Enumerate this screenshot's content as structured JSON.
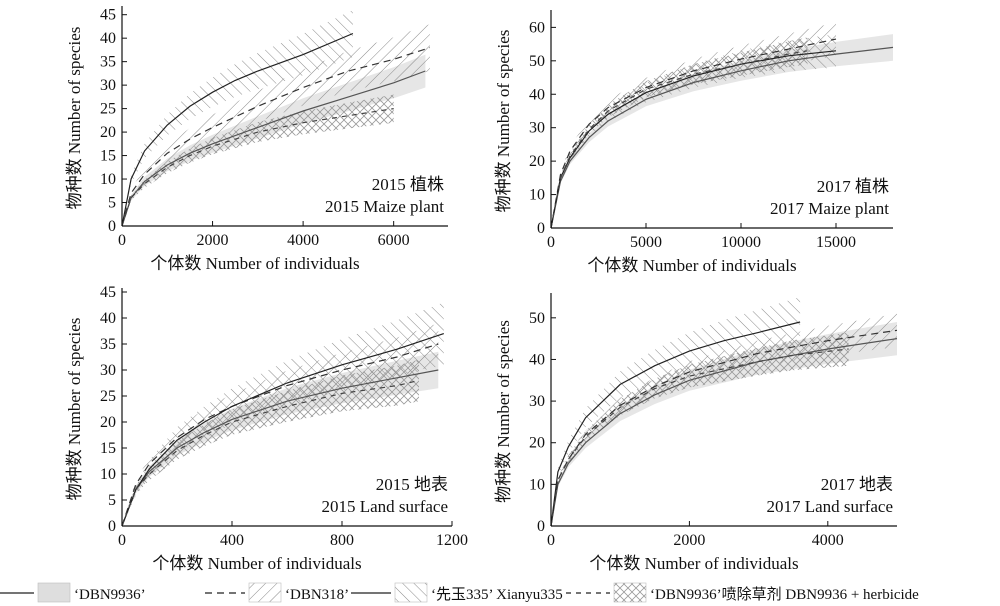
{
  "legend": {
    "items": [
      {
        "label": "‘DBN9936’",
        "line": "solid",
        "band": "gray"
      },
      {
        "label": "‘DBN318’",
        "line": "dashed",
        "band": "hatch-right"
      },
      {
        "label": "‘先玉335’ Xianyu335",
        "line": "solid",
        "band": "hatch-left"
      },
      {
        "label": "‘DBN9936’喷除草剂 DBN9936 + herbicide",
        "line": "dashed",
        "band": "hatch-cross"
      }
    ]
  },
  "colors": {
    "band_gray": "#d9d9d9",
    "hatch": "#7a7a7a",
    "line": "#333333",
    "axis": "#111111"
  },
  "chart_data": [
    {
      "type": "line",
      "panel_label": [
        "2015 植株",
        "2015 Maize plant"
      ],
      "xlabel": "个体数 Number of individuals",
      "ylabel": "物种数 Number of species",
      "xlim": [
        0,
        7200
      ],
      "ylim": [
        0,
        46
      ],
      "xticks": [
        0,
        2000,
        4000,
        6000
      ],
      "yticks": [
        0,
        5,
        10,
        15,
        20,
        25,
        30,
        35,
        40,
        45
      ],
      "series": [
        {
          "name": "‘DBN9936’",
          "x": [
            0,
            200,
            500,
            1000,
            1500,
            2000,
            3000,
            4000,
            5000,
            6000,
            6700
          ],
          "y": [
            0,
            6,
            9.5,
            13,
            15.5,
            17.5,
            21,
            24.5,
            27.5,
            30.5,
            33
          ],
          "band": 3.5
        },
        {
          "name": "‘DBN318’",
          "x": [
            0,
            200,
            500,
            1000,
            1500,
            2000,
            3000,
            4000,
            5000,
            6000,
            6800
          ],
          "y": [
            0,
            7,
            11,
            15.5,
            18.5,
            21,
            25.5,
            29.5,
            33,
            35.5,
            38
          ],
          "band": 5
        },
        {
          "name": "‘先玉335’ Xianyu335",
          "x": [
            0,
            200,
            500,
            1000,
            1500,
            2000,
            2500,
            3000,
            4000,
            5100
          ],
          "y": [
            0,
            10,
            16,
            21.5,
            25.5,
            28.5,
            31,
            33,
            36.5,
            41
          ],
          "band": 5
        },
        {
          "name": "‘DBN9936’喷除草剂 DBN9936 + herbicide",
          "x": [
            0,
            200,
            500,
            1000,
            1500,
            2000,
            3000,
            4000,
            5000,
            6000
          ],
          "y": [
            0,
            6,
            9,
            12.5,
            15,
            17,
            20,
            22,
            23.5,
            25
          ],
          "band": 3
        }
      ]
    },
    {
      "type": "line",
      "panel_label": [
        "2017 植株",
        "2017 Maize plant"
      ],
      "xlabel": "个体数 Number of individuals",
      "ylabel": "物种数 Number of species",
      "xlim": [
        0,
        18000
      ],
      "ylim": [
        0,
        64
      ],
      "xticks": [
        0,
        5000,
        10000,
        15000
      ],
      "yticks": [
        0,
        10,
        20,
        30,
        40,
        50,
        60
      ],
      "series": [
        {
          "name": "‘DBN9936’",
          "x": [
            0,
            500,
            1000,
            2000,
            3000,
            5000,
            7500,
            10000,
            12500,
            15000,
            18000
          ],
          "y": [
            0,
            14,
            20,
            27,
            32,
            38.5,
            43.5,
            47,
            50,
            52,
            54
          ],
          "band": 4
        },
        {
          "name": "‘DBN318’",
          "x": [
            0,
            500,
            1000,
            2000,
            3000,
            5000,
            7500,
            10000,
            12500,
            15000
          ],
          "y": [
            0,
            16,
            23,
            31,
            36,
            42,
            47,
            50.5,
            53.5,
            56.5
          ],
          "band": 5
        },
        {
          "name": "‘先玉335’ Xianyu335",
          "x": [
            0,
            500,
            1000,
            2000,
            3000,
            5000,
            7500,
            10000,
            12500,
            15000
          ],
          "y": [
            0,
            15,
            21,
            29,
            34,
            40.5,
            45.5,
            49,
            51.5,
            53
          ],
          "band": 5
        },
        {
          "name": "‘DBN9936’喷除草剂 DBN9936 + herbicide",
          "x": [
            0,
            500,
            1000,
            2000,
            3000,
            5000,
            7500,
            10000,
            12500,
            13500
          ],
          "y": [
            0,
            15,
            21.5,
            29.5,
            35,
            41.5,
            46,
            49,
            52,
            53
          ],
          "band": 4
        }
      ]
    },
    {
      "type": "line",
      "panel_label": [
        "2015 地表",
        "2015 Land surface"
      ],
      "xlabel": "个体数 Number of individuals",
      "ylabel": "物种数 Number of species",
      "xlim": [
        0,
        1200
      ],
      "ylim": [
        0,
        45
      ],
      "xticks": [
        0,
        400,
        800,
        1200
      ],
      "yticks": [
        0,
        5,
        10,
        15,
        20,
        25,
        30,
        35,
        40,
        45
      ],
      "series": [
        {
          "name": "‘DBN9936’",
          "x": [
            0,
            50,
            100,
            200,
            300,
            400,
            600,
            800,
            1000,
            1150
          ],
          "y": [
            0,
            7,
            10.5,
            15,
            18,
            20.5,
            24,
            26.5,
            28.5,
            30
          ],
          "band": 3.5
        },
        {
          "name": "‘DBN318’",
          "x": [
            0,
            50,
            100,
            200,
            300,
            400,
            600,
            800,
            1000,
            1150
          ],
          "y": [
            0,
            8,
            12,
            17,
            20.5,
            23,
            27,
            30,
            32.5,
            35
          ],
          "band": 4
        },
        {
          "name": "‘先玉335’ Xianyu335",
          "x": [
            0,
            50,
            100,
            200,
            300,
            400,
            600,
            800,
            1000,
            1170
          ],
          "y": [
            0,
            7,
            11,
            16.5,
            20,
            23,
            27.5,
            31,
            34,
            37
          ],
          "band": 6
        },
        {
          "name": "‘DBN9936’喷除草剂 DBN9936 + herbicide",
          "x": [
            0,
            50,
            100,
            200,
            300,
            400,
            600,
            800,
            1000,
            1080
          ],
          "y": [
            0,
            7,
            10,
            14.5,
            17.5,
            20,
            23,
            25.5,
            27,
            28
          ],
          "band": 4
        }
      ]
    },
    {
      "type": "line",
      "panel_label": [
        "2017 地表",
        "2017 Land surface"
      ],
      "xlabel": "个体数 Number of individuals",
      "ylabel": "物种数 Number of species",
      "xlim": [
        0,
        5000
      ],
      "ylim": [
        0,
        55
      ],
      "xticks": [
        0,
        2000,
        4000
      ],
      "yticks": [
        0,
        10,
        20,
        30,
        40,
        50
      ],
      "series": [
        {
          "name": "‘DBN9936’",
          "x": [
            0,
            100,
            250,
            500,
            1000,
            1500,
            2000,
            3000,
            4000,
            5000
          ],
          "y": [
            0,
            10,
            15,
            20,
            27,
            31.5,
            35,
            39.5,
            42.5,
            45
          ],
          "band": 4
        },
        {
          "name": "‘DBN318’",
          "x": [
            0,
            100,
            250,
            500,
            1000,
            1500,
            2000,
            3000,
            4000,
            5000
          ],
          "y": [
            0,
            11,
            16,
            22,
            29,
            33.5,
            37,
            41.5,
            44.5,
            47
          ],
          "band": 4
        },
        {
          "name": "‘先玉335’ Xianyu335",
          "x": [
            0,
            100,
            250,
            500,
            1000,
            1500,
            2000,
            2500,
            3000,
            3600
          ],
          "y": [
            0,
            13,
            19,
            26,
            34,
            38.5,
            42,
            44.5,
            46.5,
            49
          ],
          "band": 6
        },
        {
          "name": "‘DBN9936’喷除草剂 DBN9936 + herbicide",
          "x": [
            0,
            100,
            250,
            500,
            1000,
            1500,
            2000,
            3000,
            3500,
            4300
          ],
          "y": [
            0,
            11,
            16,
            21.5,
            28.5,
            33,
            36,
            39.5,
            41,
            42.5
          ],
          "band": 4
        }
      ]
    }
  ]
}
